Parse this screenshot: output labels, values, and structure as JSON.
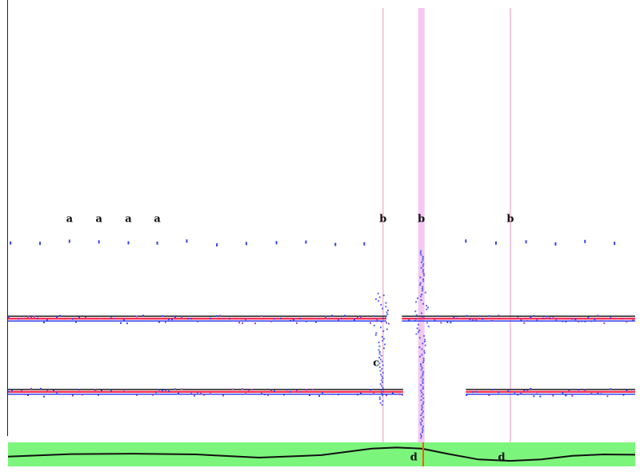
{
  "chart_data": {
    "type": "scatter",
    "title": "",
    "xlabel": "",
    "ylabel": "",
    "grid": false,
    "legend": "none",
    "colors": {
      "track_red": "#ff3355",
      "track_blue": "#3344ee",
      "track_dark": "#222222",
      "marker_line": "#f2a6c8",
      "highlight_band": "#f3c8f3",
      "band_fill": "#7cf57c",
      "band_curve": "#111111",
      "cursor": "#ff5a00"
    },
    "markers": [
      {
        "label": "b",
        "x": 0.598
      },
      {
        "label": "b",
        "x": 0.659,
        "highlighted": true
      },
      {
        "label": "b",
        "x": 0.801
      }
    ],
    "annotations": [
      {
        "label": "a",
        "x": 0.098,
        "y": 0.47
      },
      {
        "label": "a",
        "x": 0.145,
        "y": 0.47
      },
      {
        "label": "a",
        "x": 0.192,
        "y": 0.47
      },
      {
        "label": "a",
        "x": 0.238,
        "y": 0.47
      },
      {
        "label": "b",
        "x": 0.598,
        "y": 0.47
      },
      {
        "label": "b",
        "x": 0.659,
        "y": 0.47
      },
      {
        "label": "b",
        "x": 0.801,
        "y": 0.47
      },
      {
        "label": "c",
        "x": 0.587,
        "y": 0.775
      },
      {
        "label": "d",
        "x": 0.647,
        "y": 0.975
      },
      {
        "label": "d",
        "x": 0.787,
        "y": 0.975
      }
    ],
    "sparse_row": {
      "y": 0.515,
      "x": [
        0.004,
        0.051,
        0.098,
        0.145,
        0.192,
        0.238,
        0.285,
        0.333,
        0.38,
        0.428,
        0.475,
        0.522,
        0.568,
        0.73,
        0.778,
        0.826,
        0.873,
        0.92,
        0.967
      ]
    },
    "tracks": [
      {
        "name": "",
        "y": 0.675,
        "segments": [
          [
            0.0,
            0.603
          ],
          [
            0.628,
            1.0
          ]
        ]
      },
      {
        "name": "",
        "y": 0.83,
        "segments": [
          [
            0.0,
            0.63
          ],
          [
            0.73,
            1.0
          ]
        ]
      }
    ],
    "waveform": {
      "x": [
        0.0,
        0.1,
        0.2,
        0.3,
        0.4,
        0.5,
        0.58,
        0.62,
        0.66,
        0.7,
        0.75,
        0.8,
        0.85,
        0.9,
        0.95,
        1.0
      ],
      "y": [
        0.35,
        0.52,
        0.55,
        0.5,
        0.28,
        0.45,
        0.9,
        0.98,
        0.9,
        0.55,
        0.15,
        0.05,
        0.15,
        0.4,
        0.5,
        0.48
      ]
    },
    "cursor_x": 0.662
  }
}
